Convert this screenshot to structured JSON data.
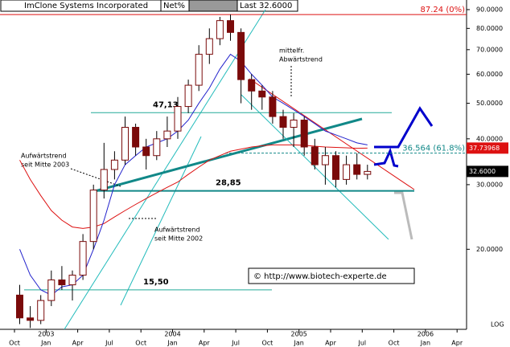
{
  "chart_data": {
    "type": "candlestick",
    "title": "ImClone Systems Incorporated",
    "header": {
      "net": "Net%",
      "last": "Last 32.6000"
    },
    "log_scale": true,
    "x": [
      "2002-10",
      "2002-11",
      "2002-12",
      "2003-01",
      "2003-02",
      "2003-03",
      "2003-04",
      "2003-05",
      "2003-06",
      "2003-07",
      "2003-08",
      "2003-09",
      "2003-10",
      "2003-11",
      "2003-12",
      "2004-01",
      "2004-02",
      "2004-03",
      "2004-04",
      "2004-05",
      "2004-06",
      "2004-07",
      "2004-08",
      "2004-09",
      "2004-10",
      "2004-11",
      "2004-12",
      "2005-01",
      "2005-02",
      "2005-03",
      "2005-04",
      "2005-05",
      "2005-06",
      "2005-07"
    ],
    "open": [
      15,
      13,
      12.8,
      14.5,
      16.5,
      16,
      17,
      21,
      29,
      33,
      35,
      43,
      38,
      36,
      40,
      42,
      49,
      56,
      68,
      75,
      84,
      78,
      58,
      54,
      52,
      46,
      43,
      45,
      38,
      34,
      36,
      31,
      34,
      32
    ],
    "high": [
      16,
      14,
      15,
      17.5,
      18,
      17.5,
      22,
      30,
      39,
      37,
      46,
      44,
      40,
      42,
      46,
      52,
      58,
      72,
      80,
      86,
      87.24,
      80,
      60,
      56,
      54,
      48,
      47,
      46,
      40,
      38,
      37,
      36,
      36.5,
      34
    ],
    "low": [
      12.5,
      12.2,
      12.5,
      14,
      15.5,
      14.5,
      16.5,
      20,
      27.5,
      31,
      34,
      36,
      33,
      35,
      38,
      40,
      47,
      54,
      64,
      72,
      74,
      50,
      48,
      48,
      44,
      40,
      38,
      36,
      33,
      30,
      29.5,
      30,
      31,
      31
    ],
    "close": [
      13,
      12.8,
      14.5,
      16.5,
      16,
      17,
      21,
      29,
      33,
      35,
      43,
      38,
      36,
      40,
      42,
      49,
      56,
      68,
      75,
      84,
      78,
      58,
      54,
      52,
      46,
      43,
      45,
      38,
      34,
      36,
      31,
      34,
      32,
      32.6
    ],
    "candle_color": "#7a0a0a",
    "moving_averages": [
      {
        "color": "#d11",
        "values": [
          35,
          31,
          28,
          25.5,
          24,
          23,
          22.8,
          23,
          23.5,
          24.5,
          25.5,
          26.5,
          27.5,
          28.5,
          29.5,
          30.5,
          32,
          33.5,
          35,
          36,
          37,
          37.5,
          38,
          38.3,
          38.5,
          38.5,
          38.5,
          38.4,
          38.2,
          38,
          37.9,
          37.8,
          37.7,
          37.74
        ]
      },
      {
        "color": "#22c",
        "values": [
          20,
          17,
          15.5,
          15,
          15.8,
          16,
          17,
          20,
          24,
          30,
          34,
          36,
          38,
          39,
          40,
          42,
          45,
          50,
          55,
          62,
          68,
          65,
          60,
          56,
          52,
          50,
          48,
          46,
          44,
          42,
          41,
          40,
          39,
          38.5
        ]
      }
    ],
    "ylim": [
      12.1,
      95.6
    ],
    "yticks": [
      {
        "value": 90,
        "label": "90.0000"
      },
      {
        "value": 80,
        "label": "80.0000"
      },
      {
        "value": 70,
        "label": "70.0000"
      },
      {
        "value": 60,
        "label": "60.0000"
      },
      {
        "value": 50,
        "label": "50.0000"
      },
      {
        "value": 40,
        "label": "40.0000"
      },
      {
        "value": 30,
        "label": "30.0000"
      },
      {
        "value": 20,
        "label": "20.0000"
      }
    ],
    "xticks": [
      {
        "value": "2002-10",
        "label": "Oct"
      },
      {
        "value": "2003-01",
        "label": "Jan"
      },
      {
        "value": "2003-04",
        "label": "Apr"
      },
      {
        "value": "2003-07",
        "label": "Jul"
      },
      {
        "value": "2003-10",
        "label": "Oct"
      },
      {
        "value": "2004-01",
        "label": "Jan"
      },
      {
        "value": "2004-04",
        "label": "Apr"
      },
      {
        "value": "2004-07",
        "label": "Jul"
      },
      {
        "value": "2004-10",
        "label": "Oct"
      },
      {
        "value": "2005-01",
        "label": "Jan"
      },
      {
        "value": "2005-04",
        "label": "Apr"
      },
      {
        "value": "2005-07",
        "label": "Jul"
      },
      {
        "value": "2005-10",
        "label": "Oct"
      },
      {
        "value": "2006-01",
        "label": "Jan"
      },
      {
        "value": "2006-04",
        "label": "Apr"
      }
    ],
    "year_labels": [
      {
        "value": "2003-01",
        "label": "2003"
      },
      {
        "value": "2004-01",
        "label": "2004"
      },
      {
        "value": "2005-01",
        "label": "2005"
      },
      {
        "value": "2006-01",
        "label": "2006"
      }
    ],
    "levels": [
      {
        "value": 47.13,
        "label": "47,13"
      },
      {
        "value": 28.85,
        "label": "28,85"
      },
      {
        "value": 15.5,
        "label": "15,50"
      }
    ],
    "fib_levels": [
      {
        "value": 87.24,
        "label": "87.24 (0%)",
        "color": "#d11"
      },
      {
        "value": 36.564,
        "label": "36.564 (61.8%)",
        "color": "#188"
      }
    ],
    "price_tags": [
      {
        "value": 37.73968,
        "label": "37.73968",
        "color": "#d11"
      },
      {
        "value": 32.6,
        "label": "32.6000",
        "color": "#000"
      }
    ],
    "annotations": {
      "mid_down_1": "mittelfr.",
      "mid_down_2": "Abwärtstrend",
      "up2003_1": "Aufwärtstrend",
      "up2003_2": "seit Mitte 2003",
      "up2002_1": "Aufwärtstrend",
      "up2002_2": "seit Mitte 2002",
      "copyright": "©  http://www.biotech-experte.de",
      "log": "LOG"
    }
  }
}
